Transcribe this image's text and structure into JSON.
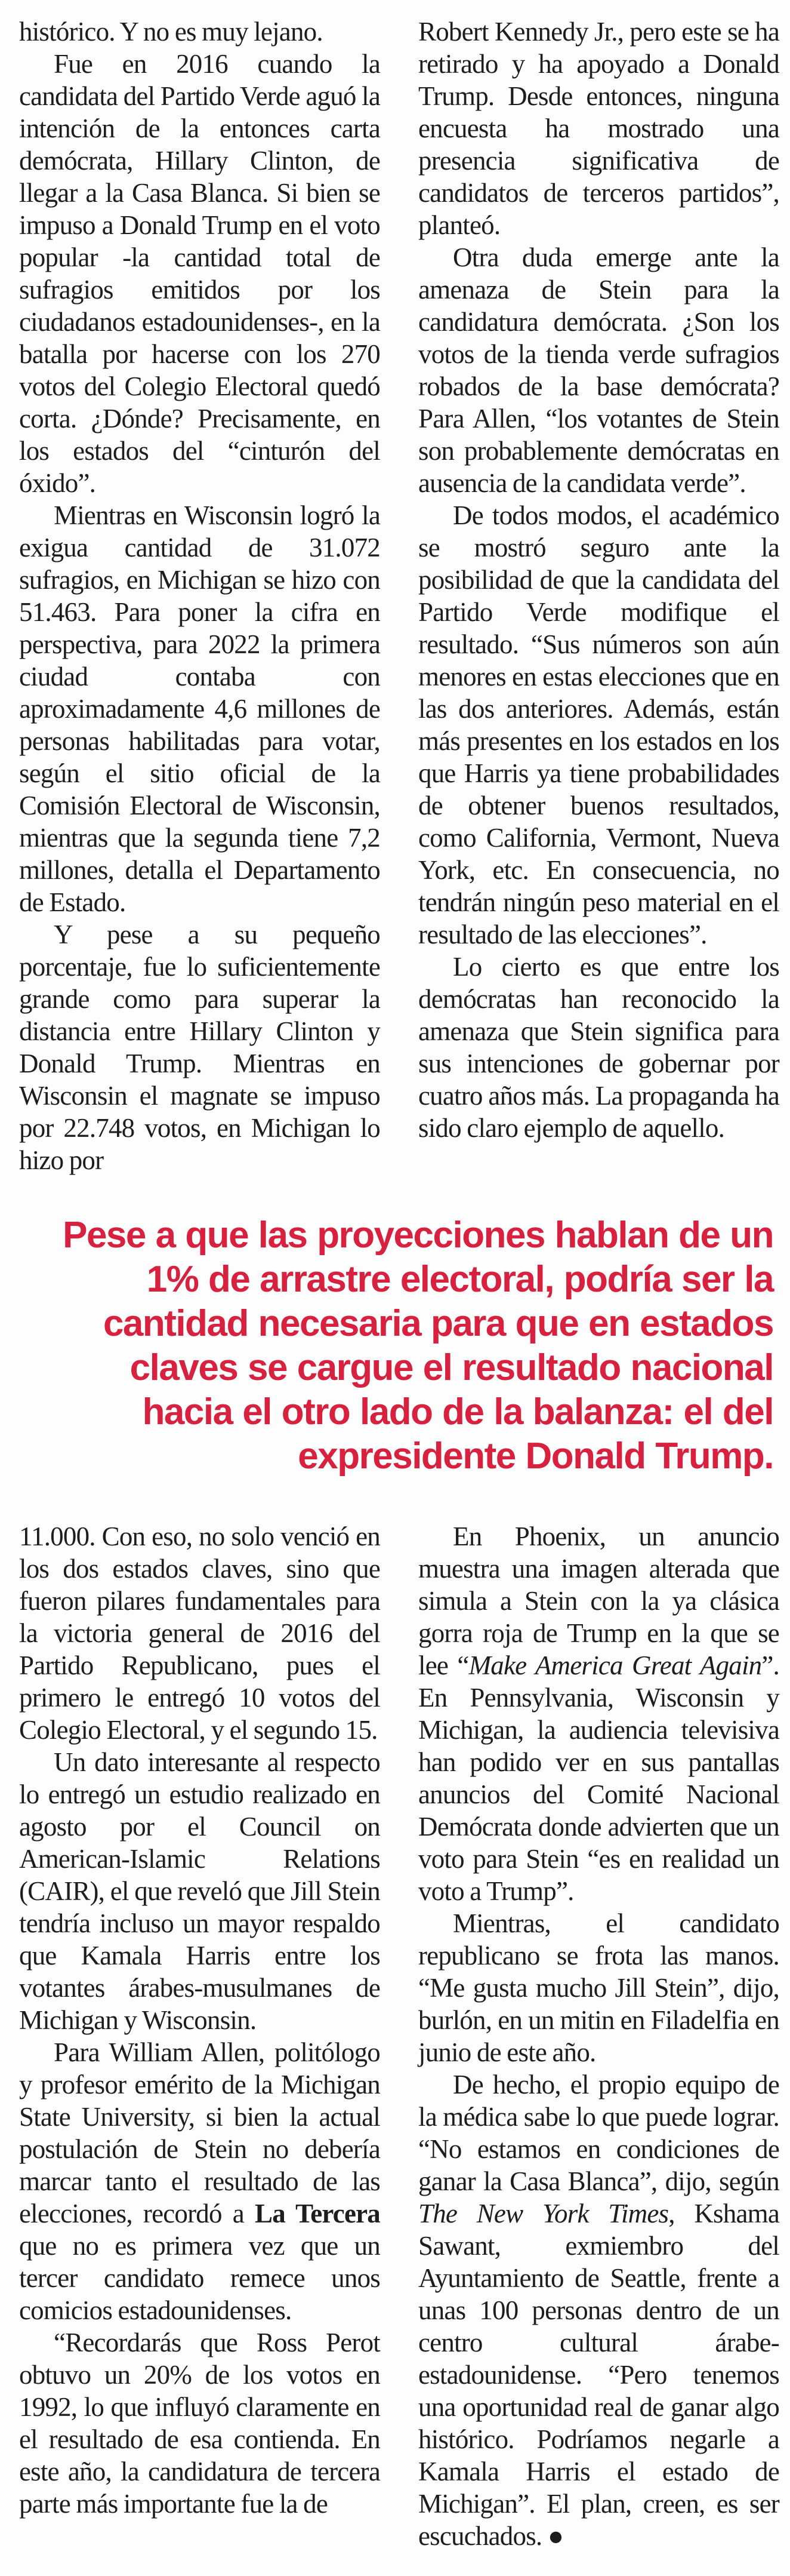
{
  "page": {
    "background": "#fdfdfd",
    "text_color": "#1d1d1d",
    "accent_red": "#d8203f"
  },
  "article": {
    "top_left": [
      {
        "indent": false,
        "runs": [
          {
            "text": "histórico. Y no es muy lejano."
          }
        ]
      },
      {
        "indent": true,
        "runs": [
          {
            "text": "Fue en 2016 cuando la candidata del Partido Verde aguó la intención de la entonces carta demócrata, Hillary Clinton, de llegar a la Casa Blanca. Si bien se impuso a Donald Trump en el voto popular -la cantidad total de sufragios emitidos por los ciudadanos estadounidenses-, en la batalla por hacerse con los 270 votos del Colegio Electoral quedó corta. ¿Dónde? Precisamente, en los estados del “cinturón del óxido”."
          }
        ]
      },
      {
        "indent": true,
        "runs": [
          {
            "text": "Mientras en Wisconsin logró la exigua cantidad de 31.072 sufragios, en Michigan se hizo con 51.463. Para poner la cifra en perspectiva, para 2022 la primera ciudad contaba con aproximadamente 4,6 millones de personas habilitadas para votar, según el sitio oficial de la Comisión Electoral de Wisconsin, mientras que la segunda tiene 7,2 millones, detalla el Departamento de Estado."
          }
        ]
      },
      {
        "indent": true,
        "runs": [
          {
            "text": "Y pese a su pequeño porcentaje, fue lo suficientemente grande como para superar la distancia entre Hillary Clinton y Donald Trump. Mientras en Wisconsin el magnate se impuso por 22.748 votos, en Michigan lo hizo por"
          }
        ]
      }
    ],
    "top_right": [
      {
        "indent": false,
        "runs": [
          {
            "text": "Robert Kennedy Jr., pero este se ha retirado y ha apoyado a Donald Trump. Desde entonces, ninguna encuesta ha mostrado una presencia significativa de candidatos de terceros partidos”, planteó."
          }
        ]
      },
      {
        "indent": true,
        "runs": [
          {
            "text": "Otra duda emerge ante la amenaza de Stein para la candidatura demócrata. ¿Son los votos de la tienda verde sufragios robados de la base demócrata? Para Allen, “los votantes de Stein son probablemente demócratas en ausencia de la candidata verde”."
          }
        ]
      },
      {
        "indent": true,
        "runs": [
          {
            "text": "De todos modos, el académico se mostró seguro ante la posibilidad de que la candidata del Partido Verde modifique el resultado. “Sus números son aún menores en estas elecciones que en las dos anteriores. Además, están más presentes en los estados en los que Harris ya tiene probabilidades de obtener buenos resultados, como California, Vermont, Nueva York, etc. En consecuencia, no tendrán ningún peso material en el resultado de las elecciones”."
          }
        ]
      },
      {
        "indent": true,
        "runs": [
          {
            "text": "Lo cierto es que entre los demócratas han reconocido la amenaza que Stein significa para sus intenciones de gobernar por cuatro años más. La propaganda ha sido claro ejemplo de aquello."
          }
        ]
      }
    ],
    "pull_quote": "Pese a que las proyecciones hablan de un 1% de arrastre electoral, podría ser la cantidad necesaria para que en estados claves se cargue el resultado nacional hacia el otro lado de la balanza: el del expresidente Donald Trump.",
    "bottom_left": [
      {
        "indent": false,
        "runs": [
          {
            "text": "11.000. Con eso, no solo venció en los dos estados claves, sino que fueron pilares fundamentales para la victoria general de 2016 del Partido Republicano, pues el primero le entregó 10 votos del Colegio Electoral, y el segundo 15."
          }
        ]
      },
      {
        "indent": true,
        "runs": [
          {
            "text": "Un dato interesante al respecto lo entregó un estudio realizado en agosto por el Council on American-Islamic Relations (CAIR), el que reveló que Jill Stein tendría incluso un mayor respaldo que Kamala Harris entre los votantes árabes-musulmanes de Michigan y Wisconsin."
          }
        ]
      },
      {
        "indent": true,
        "runs": [
          {
            "text": "Para William Allen, politólogo y profesor emérito de la Michigan State University, si bien la actual postulación de Stein no debería marcar tanto el resultado de las elecciones, recordó a "
          },
          {
            "text": "La Tercera",
            "style": "bold"
          },
          {
            "text": " que no es primera vez que un tercer candidato remece unos comicios estadounidenses."
          }
        ]
      },
      {
        "indent": true,
        "runs": [
          {
            "text": "“Recordarás que Ross Perot obtuvo un 20% de los votos en 1992, lo que influyó claramente en el resultado de esa contienda. En este año, la candidatura de tercera parte más importante fue la de"
          }
        ]
      }
    ],
    "bottom_right": [
      {
        "indent": true,
        "runs": [
          {
            "text": "En Phoenix, un anuncio muestra una imagen alterada que simula a Stein con la ya clásica gorra roja de Trump en la que se lee “"
          },
          {
            "text": "Make America Great Again",
            "style": "italic"
          },
          {
            "text": "”. En Pennsylvania, Wisconsin y Michigan, la audiencia televisiva han podido ver en sus pantallas anuncios del Comité Nacional Demócrata donde advierten que un voto para Stein “es en realidad un voto a Trump”."
          }
        ]
      },
      {
        "indent": true,
        "runs": [
          {
            "text": "Mientras, el candidato republicano se frota las manos. “Me gusta mucho Jill Stein”, dijo, burlón, en un mitin en Filadelfia en junio de este año."
          }
        ]
      },
      {
        "indent": true,
        "runs": [
          {
            "text": "De hecho, el propio equipo de la médica sabe lo que puede lograr. “No estamos en condiciones de ganar la Casa Blanca”, dijo, según "
          },
          {
            "text": "The New York Times",
            "style": "italic"
          },
          {
            "text": ", Kshama Sawant, exmiembro del Ayuntamiento de Seattle, frente a unas 100 personas dentro de un centro cultural árabe-estadounidense. “Pero tenemos una oportunidad real de ganar algo histórico. Podríamos negarle a Kamala Harris el estado de Michigan”. El plan, creen, es ser escuchados. ●"
          }
        ]
      }
    ]
  }
}
